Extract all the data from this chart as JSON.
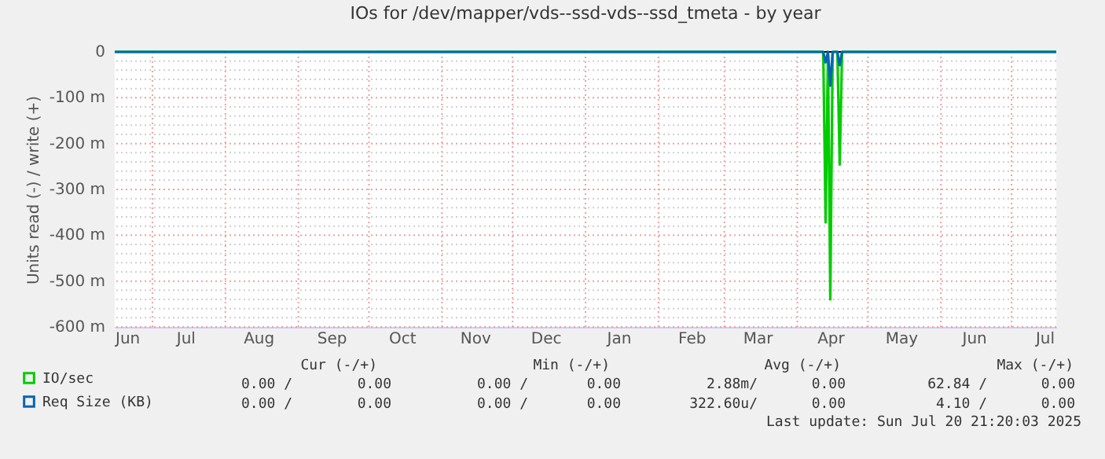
{
  "chart_data": {
    "type": "line",
    "title": "IOs for /dev/mapper/vds--ssd-vds--ssd_tmeta - by year",
    "ylabel": "Units read (-) / write (+)",
    "series": [
      {
        "name": "IO/sec",
        "color": "#00cc00",
        "x": [
          "2024-06-15",
          "2025-04-12",
          "2025-04-13",
          "2025-04-14",
          "2025-04-15",
          "2025-04-16",
          "2025-04-18",
          "2025-04-19",
          "2025-04-20",
          "2025-07-20"
        ],
        "values": [
          0,
          0,
          -372,
          0,
          -540,
          0,
          0,
          -246,
          0,
          0
        ]
      },
      {
        "name": "Req Size (KB)",
        "color": "#0066b3",
        "x": [
          "2024-06-15",
          "2025-04-12",
          "2025-04-13",
          "2025-04-14",
          "2025-04-15",
          "2025-04-16",
          "2025-04-18",
          "2025-04-19",
          "2025-04-20",
          "2025-07-20"
        ],
        "values": [
          0,
          0,
          -23,
          0,
          -74,
          0,
          0,
          -29,
          0,
          0
        ]
      }
    ],
    "xlim": [
      "2024-06-15",
      "2025-07-20"
    ],
    "xticks": [
      {
        "value": "2024-06-15",
        "label": "Jun"
      },
      {
        "value": "2024-07-15",
        "label": "Jul"
      },
      {
        "value": "2024-08-15",
        "label": "Aug"
      },
      {
        "value": "2024-09-15",
        "label": "Sep"
      },
      {
        "value": "2024-10-15",
        "label": "Oct"
      },
      {
        "value": "2024-11-15",
        "label": "Nov"
      },
      {
        "value": "2024-12-15",
        "label": "Dec"
      },
      {
        "value": "2025-01-15",
        "label": "Jan"
      },
      {
        "value": "2025-02-15",
        "label": "Feb"
      },
      {
        "value": "2025-03-15",
        "label": "Mar"
      },
      {
        "value": "2025-04-15",
        "label": "Apr"
      },
      {
        "value": "2025-05-15",
        "label": "May"
      },
      {
        "value": "2025-06-15",
        "label": "Jun"
      },
      {
        "value": "2025-07-15",
        "label": "Jul"
      },
      {
        "value": "2024-07-01",
        "label": null
      },
      {
        "value": "2024-08-01",
        "label": null
      },
      {
        "value": "2024-09-01",
        "label": null
      },
      {
        "value": "2024-10-01",
        "label": null
      },
      {
        "value": "2024-11-01",
        "label": null
      },
      {
        "value": "2024-12-01",
        "label": null
      },
      {
        "value": "2025-01-01",
        "label": null
      },
      {
        "value": "2025-02-01",
        "label": null
      },
      {
        "value": "2025-03-01",
        "label": null
      },
      {
        "value": "2025-04-01",
        "label": null
      },
      {
        "value": "2025-05-01",
        "label": null
      },
      {
        "value": "2025-06-01",
        "label": null
      },
      {
        "value": "2025-07-01",
        "label": null
      }
    ],
    "ylim": [
      -600,
      0
    ],
    "yticks": [
      0,
      {
        "value": -100,
        "label": "-100 m"
      },
      {
        "value": -200,
        "label": "-200 m"
      },
      {
        "value": -300,
        "label": "-300 m"
      },
      {
        "value": -400,
        "label": "-400 m"
      },
      {
        "value": -500,
        "label": "-500 m"
      },
      {
        "value": -600,
        "label": "-600 m"
      },
      {
        "value": -20,
        "label": null
      },
      {
        "value": -40,
        "label": null
      },
      {
        "value": -60,
        "label": null
      },
      {
        "value": -80,
        "label": null
      },
      {
        "value": -120,
        "label": null
      },
      {
        "value": -140,
        "label": null
      },
      {
        "value": -160,
        "label": null
      },
      {
        "value": -180,
        "label": null
      },
      {
        "value": -220,
        "label": null
      },
      {
        "value": -240,
        "label": null
      },
      {
        "value": -260,
        "label": null
      },
      {
        "value": -280,
        "label": null
      },
      {
        "value": -320,
        "label": null
      },
      {
        "value": -340,
        "label": null
      },
      {
        "value": -360,
        "label": null
      },
      {
        "value": -380,
        "label": null
      },
      {
        "value": -420,
        "label": null
      },
      {
        "value": -440,
        "label": null
      },
      {
        "value": -460,
        "label": null
      },
      {
        "value": -480,
        "label": null
      },
      {
        "value": -520,
        "label": null
      },
      {
        "value": -540,
        "label": null
      },
      {
        "value": -560,
        "label": null
      },
      {
        "value": -580,
        "label": null
      }
    ],
    "ref_lines": [
      {
        "axis": "y",
        "value": 0,
        "color": "#000000"
      }
    ],
    "grid": true,
    "legend": "bottom left",
    "line_style": "solid",
    "marker": "none",
    "annotations": [
      "Cur (-/+)",
      "Min (-/+)",
      "Avg (-/+)",
      "Max (-/+)",
      "0.00 /",
      "0.00",
      "0.00 /",
      "0.00",
      "2.88m/",
      "0.00",
      "62.84 /",
      "0.00",
      "0.00 /",
      "0.00",
      "0.00 /",
      "0.00",
      "322.60u/",
      "0.00",
      "4.10 /",
      "0.00",
      "Last update: Sun Jul 20 21:20:03 2025"
    ]
  }
}
